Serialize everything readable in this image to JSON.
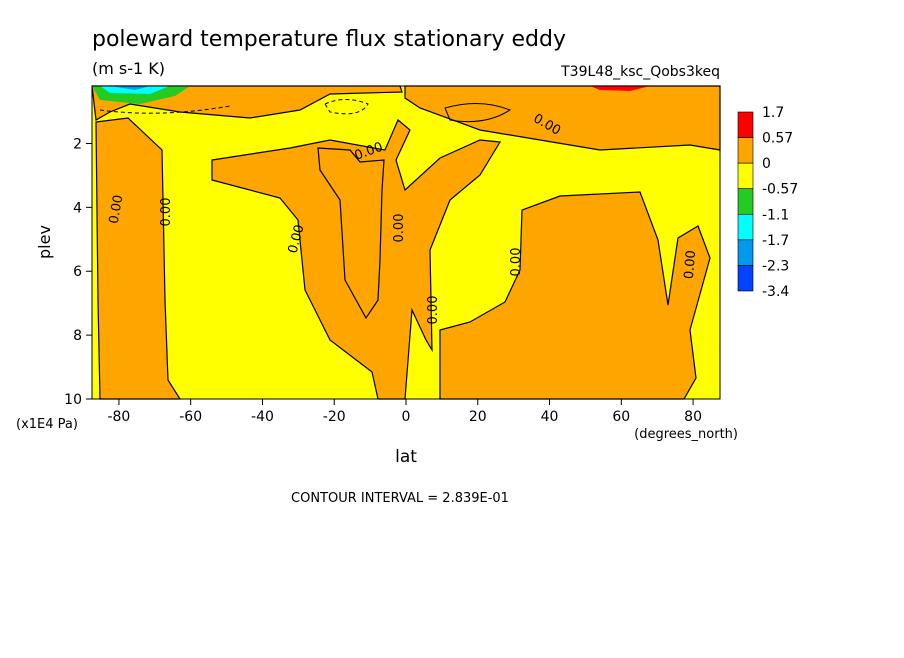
{
  "chart_data": {
    "type": "contour",
    "title": "poleward temperature flux stationary eddy",
    "units": "(m s-1 K)",
    "dataset": "T39L48_ksc_Qobs3keq",
    "xlabel": "lat",
    "xunits": "(degrees_north)",
    "ylabel": "plev",
    "yunits": "(x1E4 Pa)",
    "xlim": [
      -87.5,
      87.5
    ],
    "xticks": [
      -80,
      -60,
      -40,
      -20,
      0,
      20,
      40,
      60,
      80
    ],
    "ylim": [
      10,
      0.2
    ],
    "yticks": [
      2,
      4,
      6,
      8,
      10
    ],
    "levels": [
      1.7,
      0.57,
      0,
      -0.57,
      -1.1,
      -1.7,
      -2.3,
      -3.4
    ],
    "colors": [
      "#ff0000",
      "#ffa500",
      "#ffff00",
      "#22cc22",
      "#00ffff",
      "#0099ee",
      "#0044ff"
    ],
    "contour_labels": [
      {
        "value": 0,
        "label": "0.00"
      },
      {
        "value": 0,
        "label": "0.00"
      },
      {
        "value": 0,
        "label": "0.00"
      },
      {
        "value": 0,
        "label": "0.00"
      },
      {
        "value": 0,
        "label": "0.00"
      },
      {
        "value": 0,
        "label": "0.00"
      },
      {
        "value": 0,
        "label": "0.00"
      },
      {
        "value": 0,
        "label": "0.00"
      },
      {
        "value": 0,
        "label": "0.00"
      }
    ],
    "footnote": "CONTOUR INTERVAL = 2.839E-01"
  }
}
